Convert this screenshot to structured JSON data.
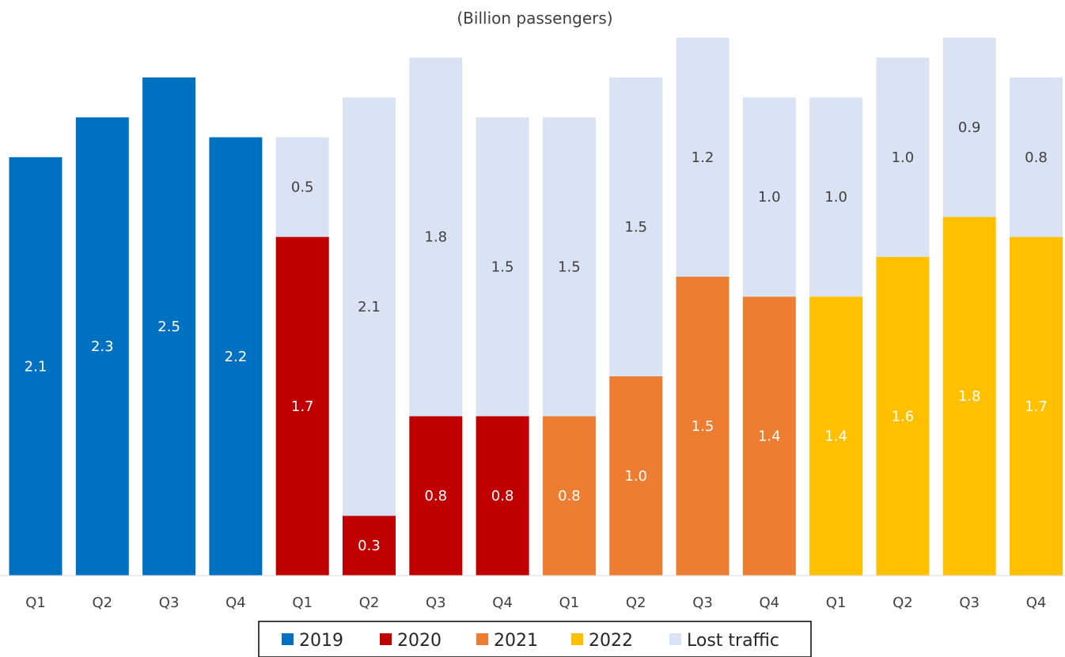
{
  "chart_data": {
    "type": "bar",
    "stacked": true,
    "title": "",
    "subtitle": "(Billion passengers)",
    "xlabel": "",
    "ylabel": "",
    "categories": [
      "Q1",
      "Q2",
      "Q3",
      "Q4",
      "Q1",
      "Q2",
      "Q3",
      "Q4",
      "Q1",
      "Q2",
      "Q3",
      "Q4",
      "Q1",
      "Q2",
      "Q3",
      "Q4"
    ],
    "year_groups": [
      "2019",
      "2019",
      "2019",
      "2019",
      "2020",
      "2020",
      "2020",
      "2020",
      "2021",
      "2021",
      "2021",
      "2021",
      "2022",
      "2022",
      "2022",
      "2022"
    ],
    "series": [
      {
        "name": "2019",
        "color": "#0070C0",
        "values": [
          2.1,
          2.3,
          2.5,
          2.2,
          null,
          null,
          null,
          null,
          null,
          null,
          null,
          null,
          null,
          null,
          null,
          null
        ]
      },
      {
        "name": "2020",
        "color": "#C00000",
        "values": [
          null,
          null,
          null,
          null,
          1.7,
          0.3,
          0.8,
          0.8,
          null,
          null,
          null,
          null,
          null,
          null,
          null,
          null
        ]
      },
      {
        "name": "2021",
        "color": "#ED7D31",
        "values": [
          null,
          null,
          null,
          null,
          null,
          null,
          null,
          null,
          0.8,
          1.0,
          1.5,
          1.4,
          null,
          null,
          null,
          null
        ]
      },
      {
        "name": "2022",
        "color": "#FFC000",
        "values": [
          null,
          null,
          null,
          null,
          null,
          null,
          null,
          null,
          null,
          null,
          null,
          null,
          1.4,
          1.6,
          1.8,
          1.7
        ]
      },
      {
        "name": "Lost traffic",
        "color": "#DAE3F3",
        "values": [
          null,
          null,
          null,
          null,
          0.5,
          2.1,
          1.8,
          1.5,
          1.5,
          1.5,
          1.2,
          1.0,
          1.0,
          1.0,
          0.9,
          0.8
        ]
      }
    ],
    "legend_position": "bottom",
    "grid": false
  }
}
